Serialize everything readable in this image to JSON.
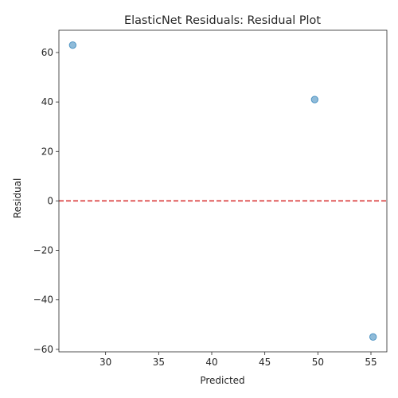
{
  "chart_data": {
    "type": "scatter",
    "title": "ElasticNet Residuals: Residual Plot",
    "xlabel": "Predicted",
    "ylabel": "Residual",
    "xlim": [
      25.6,
      56.5
    ],
    "ylim": [
      -61,
      69
    ],
    "xticks": [
      30,
      35,
      40,
      45,
      50,
      55
    ],
    "yticks": [
      -60,
      -40,
      -20,
      0,
      20,
      40,
      60
    ],
    "points": [
      {
        "x": 26.9,
        "y": 63
      },
      {
        "x": 49.7,
        "y": 41
      },
      {
        "x": 55.2,
        "y": -55
      }
    ],
    "reference_line": {
      "y": 0,
      "style": "dashed",
      "color": "#d62728"
    },
    "point_color": "#1f77b4",
    "point_alpha": 0.5,
    "grid": false,
    "legend": "none"
  }
}
